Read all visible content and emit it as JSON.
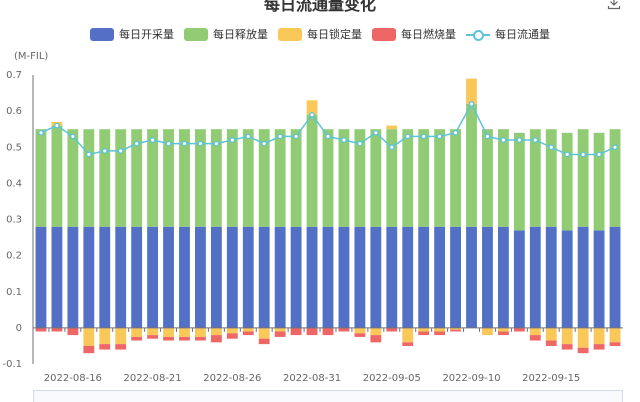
{
  "page": {
    "title": "每日流通量变化",
    "unit": "(M-FIL)"
  },
  "legend": [
    {
      "name": "每日开采量",
      "color": "#5470c6",
      "kind": "bar"
    },
    {
      "name": "每日释放量",
      "color": "#91cc75",
      "kind": "bar"
    },
    {
      "name": "每日锁定量",
      "color": "#fac858",
      "kind": "bar"
    },
    {
      "name": "每日燃烧量",
      "color": "#ee6666",
      "kind": "bar"
    },
    {
      "name": "每日流通量",
      "color": "#5ec3d8",
      "kind": "line"
    }
  ],
  "icons": {
    "download": "download-icon"
  },
  "chart_data": {
    "type": "bar",
    "title": "每日流通量变化",
    "ylabel": "(M-FIL)",
    "ylim": [
      -0.1,
      0.7
    ],
    "yticks": [
      -0.1,
      0,
      0.1,
      0.2,
      0.3,
      0.4,
      0.5,
      0.6,
      0.7
    ],
    "grid": false,
    "legend_position": "top",
    "x_tick_labels": [
      "2022-08-16",
      "2022-08-21",
      "2022-08-26",
      "2022-08-31",
      "2022-09-05",
      "2022-09-10",
      "2022-09-15"
    ],
    "x_tick_every": 5,
    "categories": [
      "2022-08-14",
      "2022-08-15",
      "2022-08-16",
      "2022-08-17",
      "2022-08-18",
      "2022-08-19",
      "2022-08-20",
      "2022-08-21",
      "2022-08-22",
      "2022-08-23",
      "2022-08-24",
      "2022-08-25",
      "2022-08-26",
      "2022-08-27",
      "2022-08-28",
      "2022-08-29",
      "2022-08-30",
      "2022-08-31",
      "2022-09-01",
      "2022-09-02",
      "2022-09-03",
      "2022-09-04",
      "2022-09-05",
      "2022-09-06",
      "2022-09-07",
      "2022-09-08",
      "2022-09-09",
      "2022-09-10",
      "2022-09-11",
      "2022-09-12",
      "2022-09-13",
      "2022-09-14",
      "2022-09-15",
      "2022-09-16",
      "2022-09-17",
      "2022-09-18",
      "2022-09-19"
    ],
    "series": [
      {
        "name": "每日开采量",
        "kind": "bar",
        "stack": "pos",
        "color": "#5470c6",
        "values": [
          0.28,
          0.28,
          0.28,
          0.28,
          0.28,
          0.28,
          0.28,
          0.28,
          0.28,
          0.28,
          0.28,
          0.28,
          0.28,
          0.28,
          0.28,
          0.28,
          0.28,
          0.28,
          0.28,
          0.28,
          0.28,
          0.28,
          0.28,
          0.28,
          0.28,
          0.28,
          0.28,
          0.28,
          0.28,
          0.28,
          0.27,
          0.28,
          0.28,
          0.27,
          0.28,
          0.27,
          0.28
        ]
      },
      {
        "name": "每日释放量",
        "kind": "bar",
        "stack": "pos",
        "color": "#91cc75",
        "values": [
          0.27,
          0.28,
          0.27,
          0.27,
          0.27,
          0.27,
          0.27,
          0.27,
          0.27,
          0.27,
          0.27,
          0.27,
          0.27,
          0.27,
          0.27,
          0.27,
          0.27,
          0.31,
          0.27,
          0.27,
          0.27,
          0.27,
          0.27,
          0.27,
          0.27,
          0.27,
          0.27,
          0.34,
          0.27,
          0.27,
          0.27,
          0.27,
          0.27,
          0.27,
          0.27,
          0.27,
          0.27
        ]
      },
      {
        "name": "每日锁定量",
        "kind": "bar",
        "stack": "mixed",
        "color": "#fac858",
        "values": [
          0,
          0.01,
          0,
          -0.05,
          -0.045,
          -0.045,
          -0.025,
          -0.02,
          -0.025,
          -0.025,
          -0.025,
          -0.02,
          -0.015,
          -0.01,
          -0.03,
          -0.01,
          0,
          0.04,
          0,
          0,
          -0.015,
          -0.02,
          0.01,
          -0.04,
          -0.01,
          -0.01,
          -0.005,
          0.07,
          -0.02,
          -0.01,
          0,
          -0.02,
          -0.035,
          -0.045,
          -0.055,
          -0.045,
          -0.04
        ]
      },
      {
        "name": "每日燃烧量",
        "kind": "bar",
        "stack": "neg",
        "color": "#ee6666",
        "values": [
          -0.01,
          -0.01,
          -0.02,
          -0.02,
          -0.015,
          -0.015,
          -0.01,
          -0.01,
          -0.01,
          -0.01,
          -0.01,
          -0.02,
          -0.015,
          -0.01,
          -0.015,
          -0.015,
          -0.02,
          -0.02,
          -0.02,
          -0.01,
          -0.01,
          -0.02,
          -0.01,
          -0.01,
          -0.01,
          -0.01,
          -0.005,
          0,
          0,
          -0.01,
          -0.01,
          -0.015,
          -0.015,
          -0.015,
          -0.015,
          -0.015,
          -0.01
        ]
      },
      {
        "name": "每日流通量",
        "kind": "line",
        "color": "#5ec3d8",
        "values": [
          0.54,
          0.56,
          0.53,
          0.48,
          0.49,
          0.49,
          0.51,
          0.52,
          0.51,
          0.51,
          0.51,
          0.51,
          0.52,
          0.53,
          0.51,
          0.53,
          0.53,
          0.59,
          0.53,
          0.52,
          0.51,
          0.54,
          0.5,
          0.53,
          0.53,
          0.53,
          0.54,
          0.62,
          0.53,
          0.52,
          0.52,
          0.52,
          0.5,
          0.48,
          0.48,
          0.48,
          0.5
        ]
      }
    ]
  }
}
